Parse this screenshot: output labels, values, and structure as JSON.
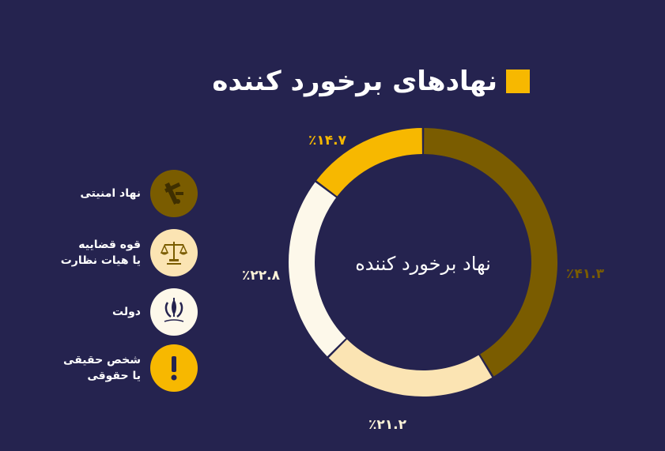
{
  "title": "نهادهای برخورد کننده",
  "legend": [
    {
      "line1": "نهاد امنیتی",
      "line2": "",
      "icon": "security-emblem-icon"
    },
    {
      "line1": "قوه قضاییه",
      "line2": "یا هیات نظارت",
      "icon": "judiciary-scales-icon"
    },
    {
      "line1": "دولت",
      "line2": "",
      "icon": "government-emblem-icon"
    },
    {
      "line1": "شخص حقیقی",
      "line2": "یا حقوقی",
      "icon": "exclamation-icon"
    }
  ],
  "colors": {
    "background": "#25234f",
    "accent": "#f7b800",
    "security": "#7a5c00",
    "judiciary": "#fbe4b3",
    "government": "#fdf8ea",
    "person": "#f7b800"
  },
  "chart_data": {
    "type": "pie",
    "variant": "donut",
    "center_label": "نهاد برخورد کننده",
    "slices": [
      {
        "name": "نهاد امنیتی",
        "value": 41.3,
        "label": "٪۴۱.۳",
        "color": "#7a5c00"
      },
      {
        "name": "قوه قضاییه یا هیات نظارت",
        "value": 21.2,
        "label": "٪۲۱.۲",
        "color": "#fbe4b3"
      },
      {
        "name": "دولت",
        "value": 22.8,
        "label": "٪۲۲.۸",
        "color": "#fdf8ea"
      },
      {
        "name": "شخص حقیقی یا حقوقی",
        "value": 14.7,
        "label": "٪۱۴.۷",
        "color": "#f7b800"
      }
    ]
  }
}
